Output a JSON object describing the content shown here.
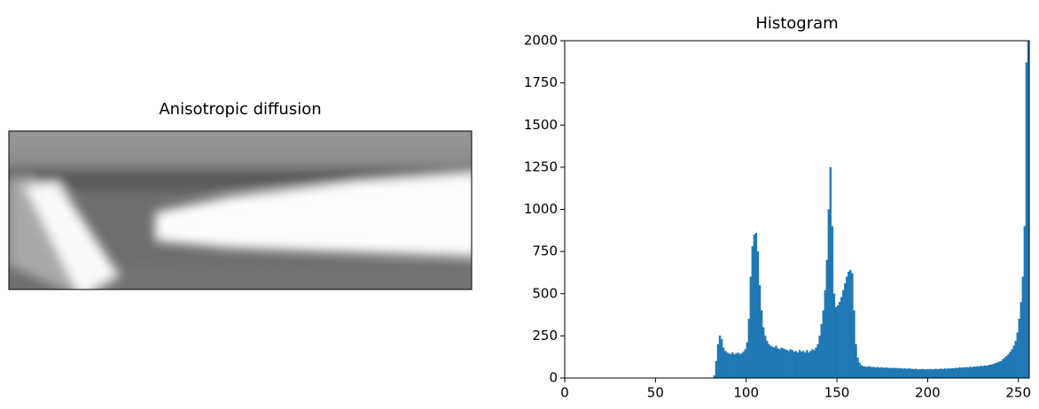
{
  "chart_data": [
    {
      "type": "image",
      "title": "Anisotropic diffusion"
    },
    {
      "type": "histogram",
      "title": "Histogram",
      "color": "#1f77b4",
      "xlim": [
        0,
        256
      ],
      "ylim": [
        0,
        2000
      ],
      "xticks": [
        0,
        50,
        100,
        150,
        200,
        250
      ],
      "yticks": [
        0,
        250,
        500,
        750,
        1000,
        1250,
        1500,
        1750,
        2000
      ],
      "bins": [
        0,
        1,
        2,
        3,
        4,
        5,
        6,
        7,
        8,
        9,
        10,
        11,
        12,
        13,
        14,
        15,
        16,
        17,
        18,
        19,
        20,
        21,
        22,
        23,
        24,
        25,
        26,
        27,
        28,
        29,
        30,
        31,
        32,
        33,
        34,
        35,
        36,
        37,
        38,
        39,
        40,
        41,
        42,
        43,
        44,
        45,
        46,
        47,
        48,
        49,
        50,
        51,
        52,
        53,
        54,
        55,
        56,
        57,
        58,
        59,
        60,
        61,
        62,
        63,
        64,
        65,
        66,
        67,
        68,
        69,
        70,
        71,
        72,
        73,
        74,
        75,
        76,
        77,
        78,
        79,
        80,
        81,
        82,
        83,
        84,
        85,
        86,
        87,
        88,
        89,
        90,
        91,
        92,
        93,
        94,
        95,
        96,
        97,
        98,
        99,
        100,
        101,
        102,
        103,
        104,
        105,
        106,
        107,
        108,
        109,
        110,
        111,
        112,
        113,
        114,
        115,
        116,
        117,
        118,
        119,
        120,
        121,
        122,
        123,
        124,
        125,
        126,
        127,
        128,
        129,
        130,
        131,
        132,
        133,
        134,
        135,
        136,
        137,
        138,
        139,
        140,
        141,
        142,
        143,
        144,
        145,
        146,
        147,
        148,
        149,
        150,
        151,
        152,
        153,
        154,
        155,
        156,
        157,
        158,
        159,
        160,
        161,
        162,
        163,
        164,
        165,
        166,
        167,
        168,
        169,
        170,
        171,
        172,
        173,
        174,
        175,
        176,
        177,
        178,
        179,
        180,
        181,
        182,
        183,
        184,
        185,
        186,
        187,
        188,
        189,
        190,
        191,
        192,
        193,
        194,
        195,
        196,
        197,
        198,
        199,
        200,
        201,
        202,
        203,
        204,
        205,
        206,
        207,
        208,
        209,
        210,
        211,
        212,
        213,
        214,
        215,
        216,
        217,
        218,
        219,
        220,
        221,
        222,
        223,
        224,
        225,
        226,
        227,
        228,
        229,
        230,
        231,
        232,
        233,
        234,
        235,
        236,
        237,
        238,
        239,
        240,
        241,
        242,
        243,
        244,
        245,
        246,
        247,
        248,
        249,
        250,
        251,
        252,
        253,
        254,
        255,
        256
      ],
      "values": [
        0,
        0,
        0,
        0,
        0,
        0,
        0,
        0,
        0,
        0,
        0,
        0,
        0,
        0,
        0,
        0,
        0,
        0,
        0,
        0,
        0,
        0,
        0,
        0,
        0,
        0,
        0,
        0,
        0,
        0,
        0,
        0,
        0,
        0,
        0,
        0,
        0,
        0,
        0,
        0,
        0,
        0,
        0,
        0,
        0,
        0,
        0,
        0,
        0,
        0,
        0,
        0,
        0,
        0,
        0,
        0,
        0,
        0,
        0,
        0,
        0,
        0,
        0,
        0,
        0,
        0,
        0,
        0,
        0,
        0,
        0,
        0,
        0,
        0,
        0,
        0,
        0,
        0,
        0,
        0,
        0,
        0,
        15,
        100,
        200,
        250,
        230,
        180,
        160,
        150,
        145,
        140,
        150,
        140,
        145,
        150,
        140,
        145,
        155,
        170,
        210,
        350,
        600,
        780,
        850,
        860,
        750,
        550,
        400,
        300,
        250,
        220,
        200,
        190,
        185,
        180,
        190,
        175,
        170,
        180,
        175,
        170,
        165,
        160,
        170,
        165,
        155,
        160,
        150,
        165,
        155,
        160,
        150,
        165,
        150,
        160,
        170,
        165,
        180,
        200,
        250,
        320,
        400,
        520,
        700,
        1000,
        1250,
        900,
        500,
        420,
        430,
        450,
        480,
        520,
        560,
        600,
        630,
        640,
        620,
        400,
        200,
        120,
        90,
        75,
        70,
        68,
        65,
        70,
        66,
        64,
        65,
        62,
        64,
        60,
        63,
        61,
        60,
        62,
        58,
        60,
        58,
        60,
        57,
        59,
        56,
        58,
        55,
        57,
        54,
        56,
        55,
        53,
        52,
        54,
        50,
        52,
        51,
        53,
        50,
        52,
        51,
        53,
        50,
        52,
        54,
        51,
        53,
        55,
        52,
        56,
        54,
        57,
        55,
        58,
        56,
        60,
        58,
        62,
        60,
        63,
        61,
        64,
        62,
        66,
        63,
        68,
        66,
        70,
        68,
        72,
        70,
        74,
        72,
        76,
        78,
        80,
        84,
        88,
        92,
        96,
        100,
        110,
        120,
        130,
        140,
        155,
        170,
        190,
        220,
        270,
        350,
        450,
        600,
        900,
        1870,
        2000
      ]
    }
  ]
}
